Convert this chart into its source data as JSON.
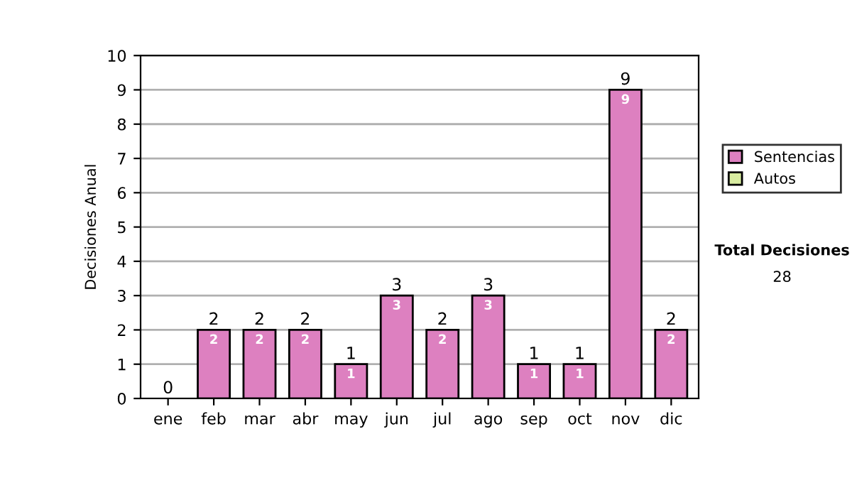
{
  "chart_data": {
    "type": "bar",
    "stacked": true,
    "ylabel": "Decisiones Anual",
    "categories": [
      "ene",
      "feb",
      "mar",
      "abr",
      "may",
      "jun",
      "jul",
      "ago",
      "sep",
      "oct",
      "nov",
      "dic"
    ],
    "series": [
      {
        "name": "Sentencias",
        "color": "#dd80c0",
        "values": [
          0,
          2,
          2,
          2,
          1,
          3,
          2,
          3,
          1,
          1,
          9,
          2
        ],
        "value_labels": [
          null,
          "2",
          "2",
          "2",
          "1",
          "3",
          "2",
          "3",
          "1",
          "1",
          "9",
          "2"
        ]
      },
      {
        "name": "Autos",
        "color": "#d8eca0",
        "values": [
          0,
          0,
          0,
          0,
          0,
          0,
          0,
          0,
          0,
          0,
          0,
          0
        ]
      }
    ],
    "totals": [
      "0",
      "2",
      "2",
      "2",
      "1",
      "3",
      "2",
      "3",
      "1",
      "1",
      "9",
      "2"
    ],
    "ylim": [
      0,
      10
    ],
    "yticks": [
      0,
      1,
      2,
      3,
      4,
      5,
      6,
      7,
      8,
      9,
      10
    ],
    "grid": "y",
    "legend": "right",
    "annotations": [
      "Total Decisiones",
      "28"
    ]
  }
}
